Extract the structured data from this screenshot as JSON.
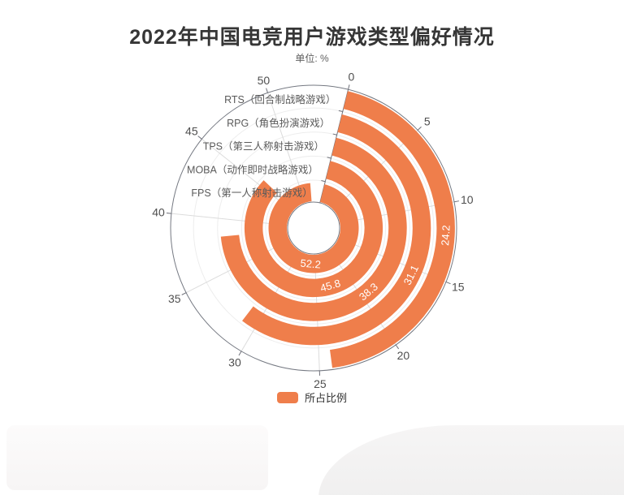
{
  "header": {
    "title": "2022年中国电竞用户游戏类型偏好情况",
    "subtitle": "单位: %"
  },
  "legend": {
    "label": "所占比例",
    "color": "#EF7E4B"
  },
  "chart_data": {
    "type": "bar",
    "variant": "polar-radial-bar",
    "series_name": "所占比例",
    "items": [
      {
        "code": "RTS",
        "label": "RTS（回合制战略游戏）",
        "value": 24.2
      },
      {
        "code": "RPG",
        "label": "RPG（角色扮演游戏）",
        "value": 31.1
      },
      {
        "code": "TPS",
        "label": "TPS（第三人称射击游戏）",
        "value": 38.3
      },
      {
        "code": "MOBA",
        "label": "MOBA（动作即时战略游戏）",
        "value": 45.8
      },
      {
        "code": "FPS",
        "label": "FPS（第一人称射击游戏）",
        "value": 52.2
      }
    ],
    "ring_order_note": "items listed outermost ring to innermost ring",
    "angle_axis": {
      "ticks": [
        0,
        5,
        10,
        15,
        20,
        25,
        30,
        35,
        40,
        45,
        50
      ],
      "max": 55,
      "start_angle_deg": 14,
      "clockwise": true
    },
    "bar_color": "#EF7E4B",
    "value_label_color": "#ffffff",
    "axis_line_color": "#6E7079",
    "circle_color": "#757982",
    "spoke_color": "#dcdcdc",
    "split_circle_color": "#ededed",
    "tick_label_color": "#4f4f4f",
    "category_label_color": "#5a5a5a"
  }
}
